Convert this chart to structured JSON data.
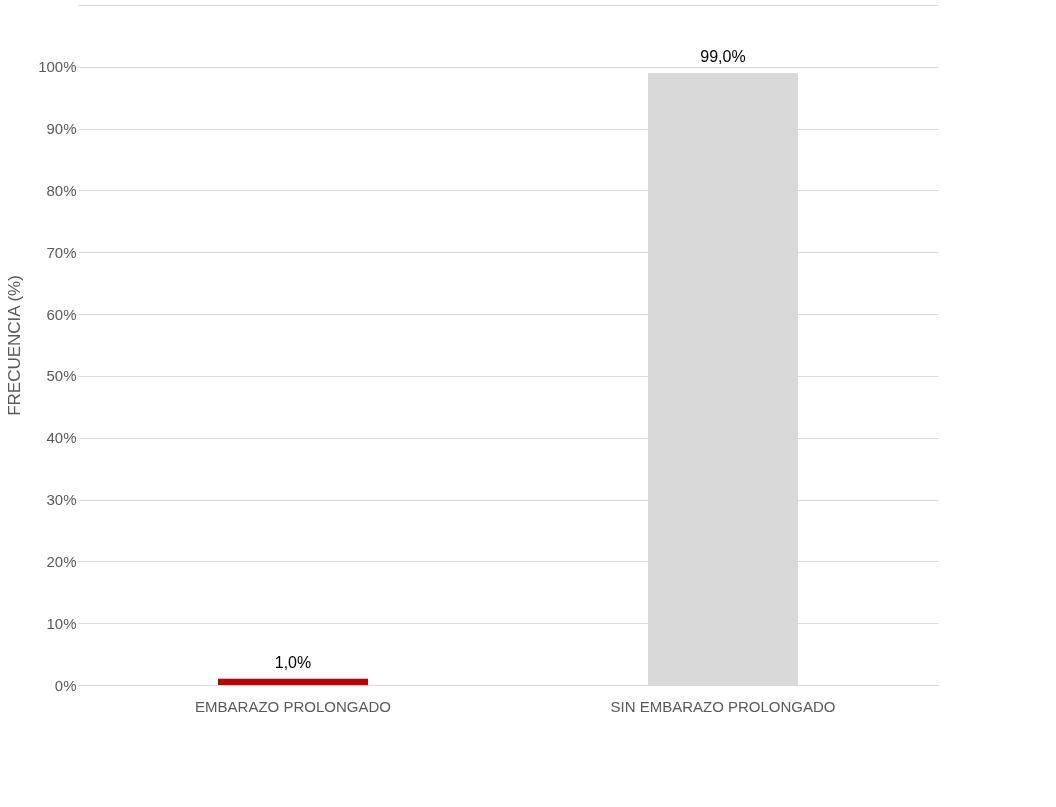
{
  "chart_data": {
    "type": "bar",
    "ylabel": "FRECUENCIA (%)",
    "categories": [
      "EMBARAZO PROLONGADO",
      "SIN EMBARAZO PROLONGADO"
    ],
    "values": [
      1.0,
      99.0
    ],
    "colors": [
      "#c00000",
      "#d9d9d9"
    ],
    "value_labels": [
      "1,0%",
      "99,0%"
    ],
    "ylim": [
      0,
      110
    ],
    "yticks": [
      {
        "value": 0,
        "label": "0%"
      },
      {
        "value": 10,
        "label": "10%"
      },
      {
        "value": 20,
        "label": "20%"
      },
      {
        "value": 30,
        "label": "30%"
      },
      {
        "value": 40,
        "label": "40%"
      },
      {
        "value": 50,
        "label": "50%"
      },
      {
        "value": 60,
        "label": "60%"
      },
      {
        "value": 70,
        "label": "70%"
      },
      {
        "value": 80,
        "label": "80%"
      },
      {
        "value": 90,
        "label": "90%"
      },
      {
        "value": 100,
        "label": "100%"
      },
      {
        "value": 110,
        "label": null
      }
    ],
    "grid": "y"
  }
}
